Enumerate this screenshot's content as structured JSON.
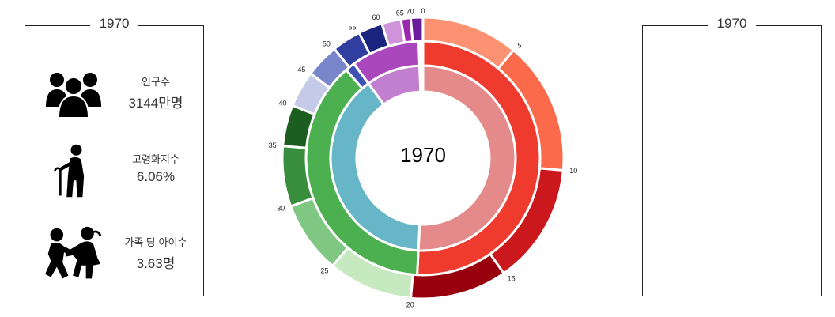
{
  "left_panel": {
    "year": "1970",
    "stats": [
      {
        "label": "인구수",
        "value": "3144만명",
        "icon": "people-group-icon"
      },
      {
        "label": "고령화지수",
        "value": "6.06%",
        "icon": "elderly-person-icon"
      },
      {
        "label": "가족 당 아이수",
        "value": "3.63명",
        "icon": "children-playing-icon"
      }
    ]
  },
  "right_panel": {
    "year": "1970"
  },
  "chart_data": {
    "type": "sunburst",
    "title": "1970",
    "unit": "percent of 360 degrees",
    "tick_labels": [
      "0",
      "5",
      "10",
      "15",
      "20",
      "25",
      "30",
      "35",
      "40",
      "45",
      "50",
      "55",
      "60",
      "65",
      "70"
    ],
    "inner_ring": [
      {
        "value": 0.508,
        "color": "#e48a8a"
      },
      {
        "value": 0.3915,
        "color": "#67b6c8"
      },
      {
        "value": 0.0944,
        "color": "#c27fcf"
      }
    ],
    "middle_ring": [
      {
        "value": 0.508,
        "color": "#ee3b2e"
      },
      {
        "value": 0.378,
        "color": "#4caf50"
      },
      {
        "value": 0.0135,
        "color": "#3f51b5"
      },
      {
        "value": 0.0944,
        "color": "#ab47bc"
      }
    ],
    "outer_ring": [
      {
        "value": 0.1111,
        "color": "#fc9272"
      },
      {
        "value": 0.1528,
        "color": "#fb6a4a"
      },
      {
        "value": 0.1389,
        "color": "#cb181d"
      },
      {
        "value": 0.1111,
        "color": "#99000d"
      },
      {
        "value": 0.0972,
        "color": "#c7e9c0"
      },
      {
        "value": 0.0833,
        "color": "#80c783"
      },
      {
        "value": 0.0694,
        "color": "#388e3c"
      },
      {
        "value": 0.0472,
        "color": "#1b5e20"
      },
      {
        "value": 0.0417,
        "color": "#c5cae9"
      },
      {
        "value": 0.0389,
        "color": "#7986cb"
      },
      {
        "value": 0.0333,
        "color": "#303f9f"
      },
      {
        "value": 0.0278,
        "color": "#1a237e"
      },
      {
        "value": 0.0222,
        "color": "#ce93d8"
      },
      {
        "value": 0.0111,
        "color": "#9c27b0"
      },
      {
        "value": 0.0139,
        "color": "#6a1b9a"
      }
    ]
  }
}
